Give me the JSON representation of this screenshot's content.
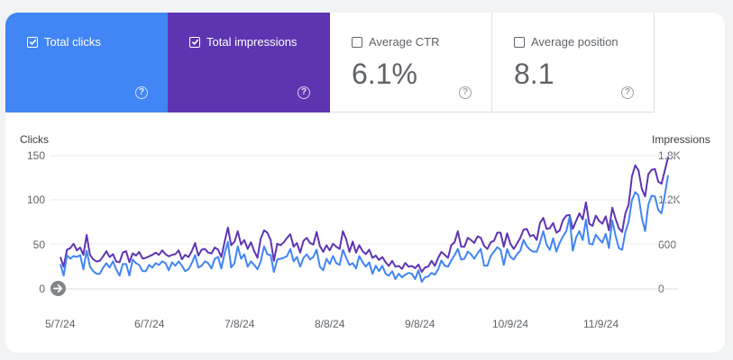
{
  "metrics": [
    {
      "label": "Total clicks",
      "checked": true,
      "value": "",
      "help": "?"
    },
    {
      "label": "Total impressions",
      "checked": true,
      "value": "",
      "help": "?"
    },
    {
      "label": "Average CTR",
      "checked": false,
      "value": "6.1%",
      "help": "?"
    },
    {
      "label": "Average position",
      "checked": false,
      "value": "8.1",
      "help": "?"
    }
  ],
  "colors": {
    "clicks": "#4285f4",
    "impressions": "#5e35b1",
    "ctr": "#ffffff",
    "grid": "#e8eaed"
  },
  "icons": {
    "check": "check-icon",
    "help": "help-icon",
    "arrow": "arrow-right-icon"
  },
  "chart_data": {
    "type": "line",
    "left_axis_title": "Clicks",
    "right_axis_title": "Impressions",
    "left_ticks": [
      "150",
      "100",
      "50",
      "0"
    ],
    "right_ticks": [
      "1.8K",
      "1.2K",
      "600",
      "0"
    ],
    "left_ylim": [
      0,
      150
    ],
    "right_ylim": [
      0,
      1800
    ],
    "x_ticks": [
      "5/7/24",
      "6/7/24",
      "7/8/24",
      "8/8/24",
      "9/8/24",
      "10/9/24",
      "11/9/24"
    ],
    "x_range": [
      "5/7/24",
      "11/30/24"
    ],
    "grid": true,
    "series": [
      {
        "name": "Total impressions",
        "axis": "right",
        "values": [
          430,
          300,
          530,
          550,
          610,
          520,
          560,
          460,
          730,
          460,
          400,
          370,
          380,
          440,
          510,
          430,
          470,
          370,
          360,
          490,
          510,
          360,
          480,
          450,
          500,
          410,
          420,
          440,
          460,
          490,
          460,
          520,
          470,
          440,
          460,
          470,
          520,
          400,
          460,
          430,
          510,
          620,
          450,
          530,
          540,
          490,
          480,
          560,
          530,
          430,
          640,
          830,
          590,
          640,
          780,
          600,
          660,
          540,
          630,
          510,
          420,
          680,
          790,
          760,
          660,
          380,
          610,
          590,
          630,
          690,
          740,
          570,
          620,
          490,
          650,
          690,
          620,
          600,
          770,
          580,
          500,
          590,
          520,
          610,
          570,
          540,
          780,
          670,
          500,
          640,
          490,
          590,
          510,
          470,
          530,
          420,
          450,
          390,
          430,
          360,
          310,
          380,
          300,
          310,
          270,
          350,
          300,
          310,
          280,
          330,
          230,
          290,
          300,
          380,
          310,
          420,
          500,
          460,
          420,
          590,
          630,
          780,
          570,
          570,
          690,
          660,
          620,
          710,
          690,
          580,
          540,
          630,
          650,
          760,
          760,
          570,
          750,
          610,
          540,
          610,
          690,
          800,
          810,
          710,
          730,
          660,
          890,
          960,
          810,
          820,
          890,
          760,
          790,
          930,
          990,
          1000,
          810,
          920,
          1020,
          940,
          1170,
          880,
          850,
          990,
          920,
          880,
          980,
          790,
          1100,
          950,
          820,
          770,
          1020,
          1140,
          1520,
          1670,
          1600,
          1350,
          1250,
          1550,
          1610,
          1620,
          1450,
          1420,
          1600,
          1780
        ]
      },
      {
        "name": "Total clicks",
        "axis": "left",
        "values": [
          28,
          15,
          38,
          34,
          37,
          36,
          38,
          22,
          43,
          25,
          20,
          17,
          17,
          24,
          29,
          24,
          31,
          22,
          15,
          28,
          28,
          15,
          33,
          29,
          27,
          20,
          20,
          27,
          24,
          29,
          27,
          31,
          29,
          21,
          30,
          26,
          31,
          26,
          20,
          22,
          29,
          38,
          24,
          26,
          31,
          29,
          23,
          34,
          36,
          23,
          40,
          53,
          24,
          29,
          48,
          34,
          39,
          25,
          31,
          27,
          22,
          31,
          48,
          39,
          38,
          19,
          33,
          34,
          35,
          37,
          45,
          31,
          36,
          25,
          35,
          39,
          33,
          36,
          44,
          25,
          21,
          34,
          28,
          37,
          29,
          27,
          44,
          35,
          27,
          29,
          23,
          37,
          30,
          25,
          30,
          17,
          26,
          20,
          26,
          17,
          15,
          20,
          11,
          17,
          13,
          16,
          18,
          17,
          11,
          21,
          8,
          13,
          14,
          18,
          16,
          22,
          32,
          26,
          25,
          32,
          38,
          45,
          33,
          34,
          42,
          39,
          34,
          40,
          45,
          26,
          26,
          37,
          42,
          47,
          44,
          27,
          45,
          36,
          33,
          39,
          43,
          55,
          48,
          44,
          42,
          42,
          52,
          65,
          50,
          44,
          57,
          42,
          52,
          59,
          65,
          81,
          43,
          58,
          65,
          55,
          78,
          51,
          50,
          61,
          56,
          52,
          62,
          46,
          77,
          60,
          46,
          44,
          64,
          76,
          100,
          109,
          105,
          80,
          65,
          95,
          105,
          104,
          89,
          85,
          106,
          128
        ]
      }
    ]
  }
}
